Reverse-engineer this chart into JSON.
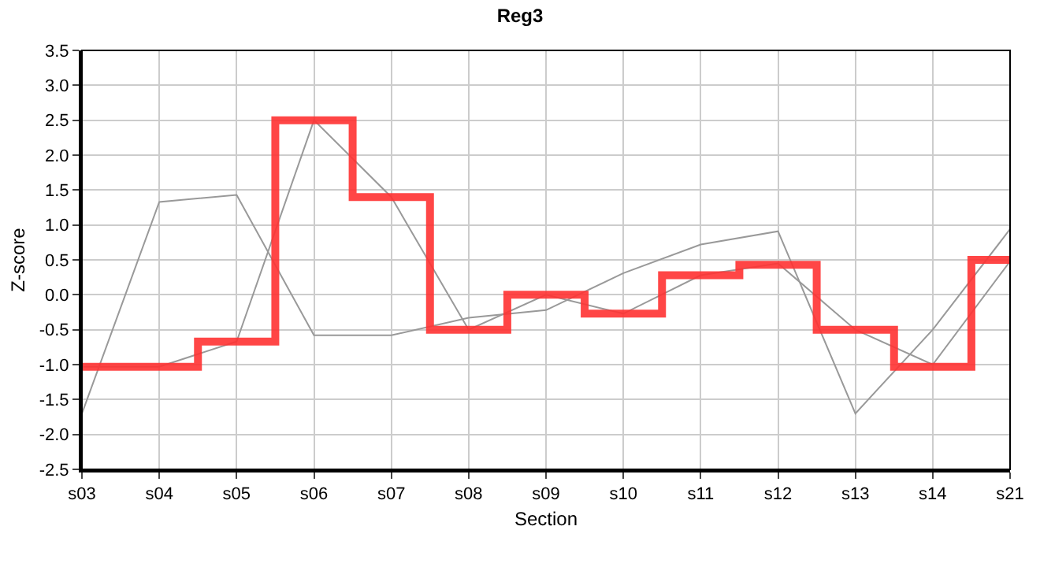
{
  "chart_data": {
    "type": "line",
    "title": "Reg3",
    "xlabel": "Section",
    "ylabel": "Z-score",
    "categories": [
      "s03",
      "s04",
      "s05",
      "s06",
      "s07",
      "s08",
      "s09",
      "s10",
      "s11",
      "s12",
      "s13",
      "s14",
      "s21"
    ],
    "series": [
      {
        "color": "#999999",
        "values": [
          -1.7,
          1.33,
          1.43,
          -0.58,
          -0.58,
          -0.33,
          -0.22,
          0.31,
          0.72,
          0.91,
          -1.7,
          -0.5,
          0.94
        ]
      },
      {
        "color": "#999999",
        "values": [
          -1.03,
          -1.03,
          -0.67,
          2.5,
          1.4,
          -0.5,
          0.0,
          -0.27,
          0.28,
          0.45,
          -0.5,
          -1.0,
          0.48
        ]
      },
      {
        "type": "step",
        "color": "#ff3333",
        "values": [
          -1.03,
          -1.03,
          -0.67,
          2.5,
          1.4,
          -0.5,
          0.0,
          -0.27,
          0.28,
          0.43,
          -0.5,
          -1.03,
          0.5
        ]
      }
    ],
    "ylim": [
      -2.5,
      3.5
    ],
    "yticks": [
      -2.5,
      {
        "value": -2,
        "label": "-2.0"
      },
      -1.5,
      {
        "value": -1,
        "label": "-1.0"
      },
      -0.5,
      {
        "value": 0,
        "label": "0.0"
      },
      0.5,
      {
        "value": 1,
        "label": "1.0"
      },
      1.5,
      {
        "value": 2,
        "label": "2.0"
      },
      2.5,
      {
        "value": 3,
        "label": "3.0"
      },
      3.5
    ],
    "grid": true,
    "marker": "none",
    "line_style": "solid"
  }
}
